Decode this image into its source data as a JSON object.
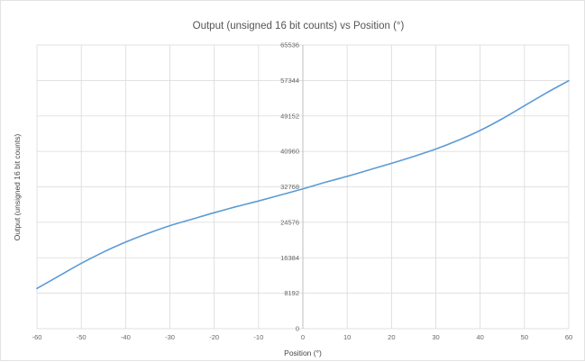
{
  "chart_data": {
    "type": "line",
    "title": "Output (unsigned 16 bit counts) vs Position (°)",
    "xlabel": "Position (°)",
    "ylabel": "Output (unsigned 16 bit counts)",
    "xlim": [
      -60,
      60
    ],
    "ylim": [
      0,
      65536
    ],
    "x_ticks": [
      -60,
      -50,
      -40,
      -30,
      -20,
      -10,
      0,
      10,
      20,
      30,
      40,
      50,
      60
    ],
    "y_ticks": [
      0,
      8192,
      16384,
      24576,
      32768,
      40960,
      49152,
      57344,
      65536
    ],
    "grid": true,
    "legend": "none",
    "line_color": "#5b9bd5",
    "series": [
      {
        "x": [
          -60,
          -55,
          -50,
          -45,
          -40,
          -35,
          -30,
          -25,
          -20,
          -15,
          -10,
          -5,
          0,
          5,
          10,
          15,
          20,
          25,
          30,
          35,
          40,
          45,
          50,
          55,
          60
        ],
        "y": [
          9300,
          12200,
          15100,
          17700,
          20000,
          22000,
          23800,
          25300,
          26800,
          28200,
          29500,
          30900,
          32300,
          33800,
          35200,
          36700,
          38200,
          39800,
          41500,
          43500,
          45800,
          48500,
          51500,
          54500,
          57300
        ]
      }
    ]
  }
}
